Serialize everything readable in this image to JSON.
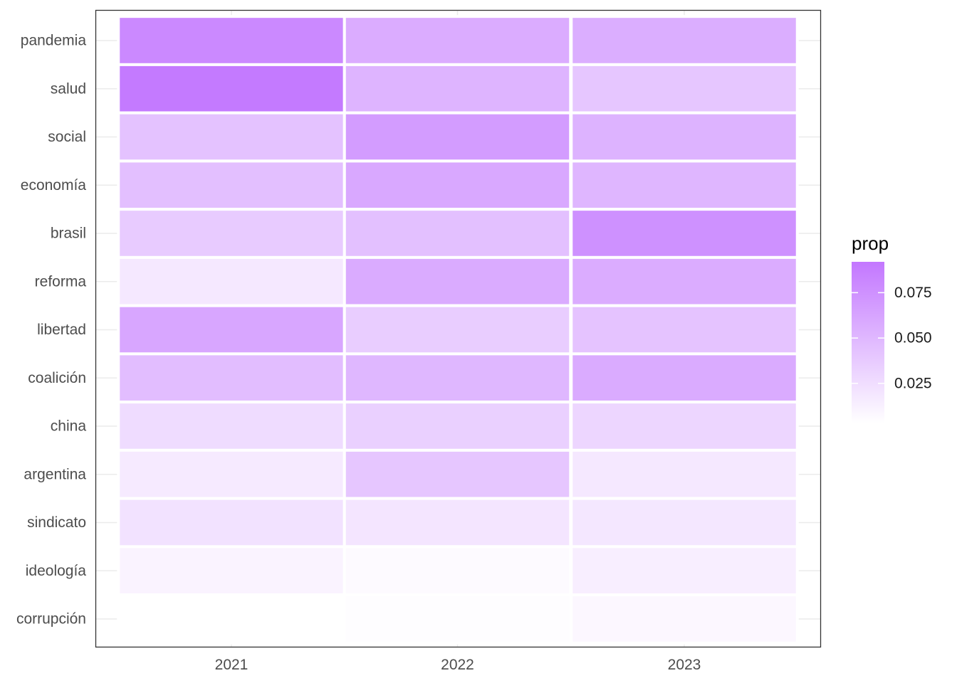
{
  "chart_data": {
    "type": "heatmap",
    "x": [
      "2021",
      "2022",
      "2023"
    ],
    "y": [
      "pandemia",
      "salud",
      "social",
      "economía",
      "brasil",
      "reforma",
      "libertad",
      "coalición",
      "china",
      "argentina",
      "sindicato",
      "ideología",
      "corrupción"
    ],
    "values": [
      [
        0.08,
        0.057,
        0.056
      ],
      [
        0.09,
        0.052,
        0.04
      ],
      [
        0.043,
        0.068,
        0.053
      ],
      [
        0.045,
        0.06,
        0.051
      ],
      [
        0.037,
        0.044,
        0.075
      ],
      [
        0.018,
        0.058,
        0.057
      ],
      [
        0.061,
        0.036,
        0.042
      ],
      [
        0.046,
        0.05,
        0.058
      ],
      [
        0.026,
        0.034,
        0.03
      ],
      [
        0.017,
        0.04,
        0.018
      ],
      [
        0.022,
        0.02,
        0.019
      ],
      [
        0.011,
        0.006,
        0.014
      ],
      [
        0.003,
        0.004,
        0.008
      ]
    ],
    "legend": {
      "title": "prop",
      "ticks": [
        0.025,
        0.05,
        0.075
      ],
      "tick_labels": [
        "0.025",
        "0.050",
        "0.075"
      ],
      "range": [
        0.003,
        0.092
      ]
    },
    "colors": {
      "low": "#ffffff",
      "high": "#c377ff"
    },
    "grid": true,
    "legend_position": "right",
    "title": "",
    "xlabel": "",
    "ylabel": ""
  }
}
